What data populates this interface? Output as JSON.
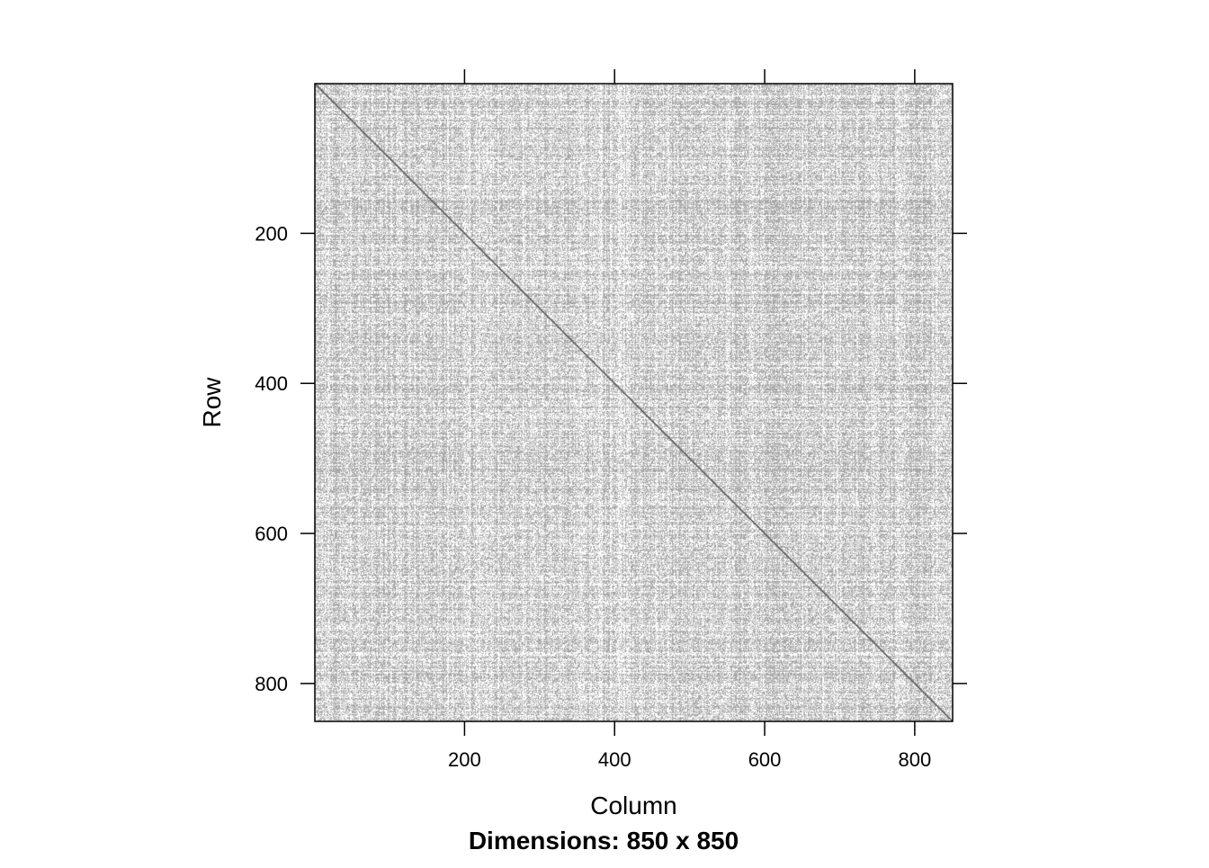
{
  "chart_data": {
    "type": "heatmap",
    "subtype": "sparse-matrix-image",
    "rows": 850,
    "cols": 850,
    "xlabel": "Column",
    "ylabel": "Row",
    "subtitle": "Dimensions: 850 x 850",
    "x_ticks": [
      200,
      400,
      600,
      800
    ],
    "y_ticks": [
      200,
      400,
      600,
      800
    ],
    "xlim": [
      1,
      850
    ],
    "ylim": [
      850,
      1
    ],
    "x_tick_side": "top-and-bottom",
    "x_label_side": "bottom",
    "y_tick_side": "left-and-right",
    "y_label_side": "left",
    "diagonal": true,
    "colors": {
      "fill": "#a9a9a9",
      "diagonal": "#6a6a6a",
      "background": "#ffffff",
      "axis": "#000000"
    }
  }
}
